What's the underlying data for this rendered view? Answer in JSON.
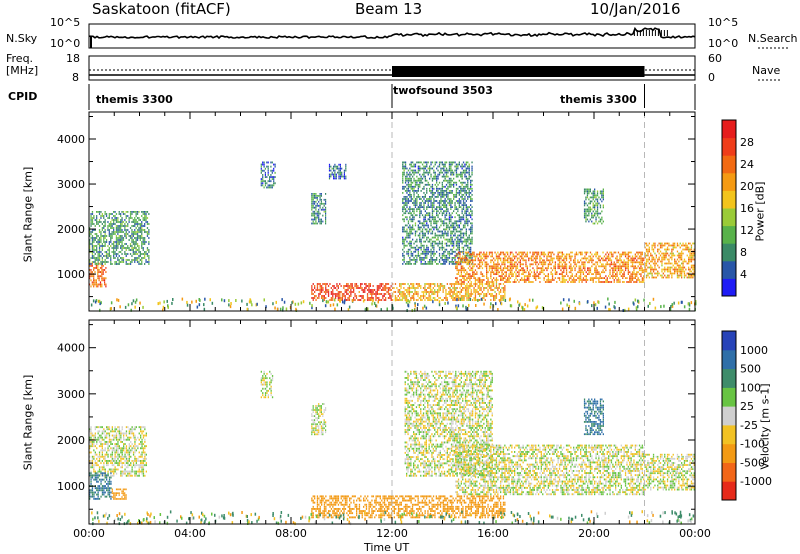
{
  "header": {
    "station": "Saskatoon (fitACF)",
    "beam": "Beam 13",
    "date": "10/Jan/2016"
  },
  "left_labels": {
    "nsky": "N.Sky",
    "freq": "Freq.",
    "mhz": "[MHz]",
    "cpid": "CPID"
  },
  "right_labels": {
    "nsearch": "N.Search",
    "nave": "Nave"
  },
  "noise_axis": {
    "left_ticks": [
      "10^5",
      "10^0"
    ],
    "right_ticks": [
      "10^5",
      "10^0"
    ]
  },
  "freq_axis": {
    "left_ticks": [
      "18",
      "8"
    ],
    "right_ticks": [
      "60",
      "0"
    ]
  },
  "cpid_segments": [
    {
      "label": "themis 3300",
      "start_hour": 0,
      "end_hour": 12
    },
    {
      "label": "twofsound 3503",
      "start_hour": 12,
      "end_hour": 22
    },
    {
      "label": "themis 3300",
      "start_hour": 22,
      "end_hour": 24
    }
  ],
  "x_axis": {
    "title": "Time UT",
    "ticks": [
      "00:00",
      "04:00",
      "08:00",
      "12:00",
      "16:00",
      "20:00",
      "00:00"
    ],
    "range_hours": [
      0,
      24
    ]
  },
  "y_axis": {
    "title": "Slant Range [km]",
    "ticks": [
      "1000",
      "2000",
      "3000",
      "4000"
    ],
    "range_km": [
      180,
      4600
    ]
  },
  "power_colorbar": {
    "title": "Power [dB]",
    "ticks": [
      "4",
      "8",
      "12",
      "16",
      "20",
      "24",
      "28"
    ],
    "range": [
      0,
      32
    ],
    "colors": [
      "#1f1cf5",
      "#2856a8",
      "#3a8a66",
      "#58b24a",
      "#9acb38",
      "#f2c41c",
      "#f59a12",
      "#f26a12",
      "#ef3d1a",
      "#e61d1d"
    ]
  },
  "velocity_colorbar": {
    "title": "Velocity [m s-1]",
    "ticks": [
      "1000",
      "500",
      "100",
      "25",
      "-25",
      "-100",
      "-500",
      "-1000"
    ],
    "colors": [
      "#2743b8",
      "#2f6fa8",
      "#3e8c6a",
      "#68c443",
      "#cfcfcf",
      "#f2c224",
      "#f39a14",
      "#f26618",
      "#e62a1a"
    ]
  },
  "chart_data": {
    "type": "heatmap",
    "title": "Saskatoon (fitACF)  Beam 13  10/Jan/2016",
    "xlabel": "Time UT",
    "ylabel": "Slant Range [km]",
    "xlim": [
      0,
      24
    ],
    "ylim": [
      180,
      4600
    ],
    "panels": [
      {
        "name": "Power [dB]",
        "scale": [
          0,
          32
        ],
        "regions": [
          {
            "t0": 0.0,
            "t1": 0.7,
            "r0": 700,
            "r1": 1250,
            "value": 24
          },
          {
            "t0": 0.0,
            "t1": 2.4,
            "r0": 1200,
            "r1": 2400,
            "value": 9
          },
          {
            "t0": 6.8,
            "t1": 7.4,
            "r0": 2900,
            "r1": 3500,
            "value": 6
          },
          {
            "t0": 8.8,
            "t1": 9.4,
            "r0": 2100,
            "r1": 2800,
            "value": 8
          },
          {
            "t0": 9.5,
            "t1": 10.2,
            "r0": 3100,
            "r1": 3450,
            "value": 6
          },
          {
            "t0": 8.8,
            "t1": 12.0,
            "r0": 400,
            "r1": 800,
            "value": 27
          },
          {
            "t0": 12.0,
            "t1": 16.5,
            "r0": 400,
            "r1": 800,
            "value": 20
          },
          {
            "t0": 12.4,
            "t1": 15.2,
            "r0": 1200,
            "r1": 3500,
            "value": 8
          },
          {
            "t0": 14.5,
            "t1": 22.0,
            "r0": 800,
            "r1": 1500,
            "value": 22
          },
          {
            "t0": 19.6,
            "t1": 20.4,
            "r0": 2100,
            "r1": 2900,
            "value": 10
          },
          {
            "t0": 22.0,
            "t1": 24.0,
            "r0": 900,
            "r1": 1700,
            "value": 20
          }
        ]
      },
      {
        "name": "Velocity [m s-1]",
        "scale": [
          -1000,
          1000
        ],
        "regions": [
          {
            "t0": 0.0,
            "t1": 2.3,
            "r0": 1200,
            "r1": 2300,
            "value": 0
          },
          {
            "t0": 0.0,
            "t1": 0.9,
            "r0": 700,
            "r1": 1300,
            "value": 300
          },
          {
            "t0": 0.9,
            "t1": 1.5,
            "r0": 700,
            "r1": 950,
            "value": -150
          },
          {
            "t0": 6.8,
            "t1": 7.3,
            "r0": 2900,
            "r1": 3500,
            "value": 0
          },
          {
            "t0": 8.8,
            "t1": 9.4,
            "r0": 2100,
            "r1": 2800,
            "value": 0
          },
          {
            "t0": 8.8,
            "t1": 16.5,
            "r0": 300,
            "r1": 800,
            "value": -200
          },
          {
            "t0": 12.5,
            "t1": 16.0,
            "r0": 1200,
            "r1": 3500,
            "value": 0
          },
          {
            "t0": 14.5,
            "t1": 22.0,
            "r0": 800,
            "r1": 1900,
            "value": 0
          },
          {
            "t0": 19.6,
            "t1": 20.4,
            "r0": 2100,
            "r1": 2900,
            "value": 300
          },
          {
            "t0": 22.0,
            "t1": 24.0,
            "r0": 900,
            "r1": 1700,
            "value": 0
          }
        ]
      }
    ]
  }
}
